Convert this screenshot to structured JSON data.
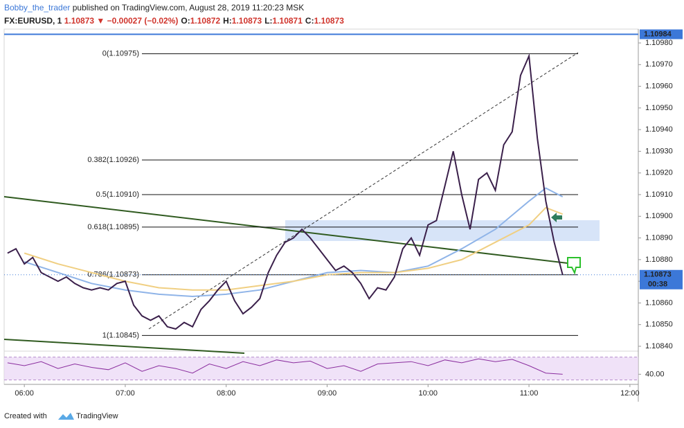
{
  "chart_data": {
    "type": "line",
    "header": {
      "author": "Bobby_the_trader",
      "published": "published on TradingView.com, August 28, 2019 11:20:23 MSK",
      "symbol": "FX:EURUSD, 1",
      "price": "1.10873",
      "change": "▼ −0.00027 (−0.02%)",
      "ohlc": [
        {
          "k": "O:",
          "v": "1.10872"
        },
        {
          "k": "H:",
          "v": "1.10873"
        },
        {
          "k": "L:",
          "v": "1.10871"
        },
        {
          "k": "C:",
          "v": "1.10873"
        }
      ]
    },
    "x": [
      350,
      355,
      360,
      365,
      370,
      375,
      380,
      385,
      390,
      395,
      400,
      405,
      410,
      415,
      420,
      425,
      430,
      435,
      440,
      445,
      450,
      455,
      460,
      465,
      470,
      475,
      480,
      485,
      490,
      495,
      500,
      505,
      510,
      515,
      520,
      525,
      530,
      535,
      540,
      545,
      550,
      555,
      560,
      565,
      570,
      575,
      580,
      585,
      590,
      595,
      600,
      605,
      610,
      615,
      620,
      625,
      630,
      635,
      640,
      645,
      650,
      655,
      660,
      665,
      670,
      675,
      680
    ],
    "values": [
      1.10883,
      1.10885,
      1.10878,
      1.10881,
      1.10874,
      1.10872,
      1.1087,
      1.10872,
      1.10869,
      1.10867,
      1.10866,
      1.10867,
      1.10866,
      1.10869,
      1.1087,
      1.10859,
      1.10854,
      1.10852,
      1.10854,
      1.10849,
      1.10848,
      1.10851,
      1.10849,
      1.10857,
      1.10861,
      1.10866,
      1.1087,
      1.10861,
      1.10855,
      1.10858,
      1.10862,
      1.10874,
      1.10882,
      1.10888,
      1.1089,
      1.10894,
      1.1089,
      1.10885,
      1.1088,
      1.10875,
      1.10877,
      1.10874,
      1.10869,
      1.10862,
      1.10867,
      1.10866,
      1.10872,
      1.10885,
      1.1089,
      1.10882,
      1.10896,
      1.10898,
      1.10914,
      1.1093,
      1.1091,
      1.10894,
      1.10917,
      1.1092,
      1.10912,
      1.10933,
      1.10939,
      1.10965,
      1.10974,
      1.10936,
      1.10907,
      1.10888,
      1.10873
    ],
    "color": "#3a1f4a",
    "ma_x": [
      360,
      380,
      400,
      420,
      440,
      460,
      480,
      500,
      520,
      540,
      560,
      580,
      600,
      620,
      640,
      660,
      670,
      680
    ],
    "ma_lines": [
      {
        "color": "#8fb4e8",
        "values": [
          1.10879,
          1.10874,
          1.10869,
          1.10866,
          1.10864,
          1.10863,
          1.10864,
          1.10866,
          1.1087,
          1.10874,
          1.10875,
          1.10874,
          1.10877,
          1.10885,
          1.10894,
          1.10907,
          1.10913,
          1.10909
        ]
      },
      {
        "color": "#f0cf82",
        "values": [
          1.10883,
          1.10878,
          1.10874,
          1.1087,
          1.10867,
          1.10866,
          1.10866,
          1.10868,
          1.1087,
          1.10873,
          1.10874,
          1.10874,
          1.10876,
          1.1088,
          1.10888,
          1.10896,
          1.10904,
          1.10901
        ]
      }
    ],
    "xlim": [
      348,
      725
    ],
    "xticks": [
      {
        "value": 360,
        "label": "06:00"
      },
      {
        "value": 420,
        "label": "07:00"
      },
      {
        "value": 480,
        "label": "08:00"
      },
      {
        "value": 540,
        "label": "09:00"
      },
      {
        "value": 600,
        "label": "10:00"
      },
      {
        "value": 660,
        "label": "11:00"
      },
      {
        "value": 720,
        "label": "12:00"
      }
    ],
    "ylim": [
      1.108384,
      1.109864
    ],
    "yticks": [
      {
        "value": 1.1084,
        "label": "1.10840"
      },
      {
        "value": 1.1085,
        "label": "1.10850"
      },
      {
        "value": 1.1086,
        "label": "1.10860"
      },
      {
        "value": 1.1087,
        "label": "1.10870"
      },
      {
        "value": 1.1088,
        "label": "1.10880"
      },
      {
        "value": 1.1089,
        "label": "1.10890"
      },
      {
        "value": 1.109,
        "label": "1.10900"
      },
      {
        "value": 1.1091,
        "label": "1.10910"
      },
      {
        "value": 1.1092,
        "label": "1.10920"
      },
      {
        "value": 1.1093,
        "label": "1.10930"
      },
      {
        "value": 1.1094,
        "label": "1.10940"
      },
      {
        "value": 1.1095,
        "label": "1.10950"
      },
      {
        "value": 1.1096,
        "label": "1.10960"
      },
      {
        "value": 1.1097,
        "label": "1.10970"
      },
      {
        "value": 1.1098,
        "label": "1.10980"
      }
    ],
    "grid": false,
    "fib_levels": [
      {
        "label": "0(1.10975)",
        "value": 1.10975
      },
      {
        "label": "0.382(1.10926)",
        "value": 1.10926
      },
      {
        "label": "0.5(1.10910)",
        "value": 1.1091
      },
      {
        "label": "0.618(1.10895)",
        "value": 1.10895
      },
      {
        "label": "0.786(1.10873)",
        "value": 1.10873
      },
      {
        "label": "1(1.10845)",
        "value": 1.10845
      }
    ],
    "top_line": {
      "value": 1.10984,
      "label": "1.10984"
    },
    "last_price": {
      "value": 1.10873,
      "label": "1.10873"
    },
    "countdown": "00:38",
    "rsi": {
      "x": [
        350,
        360,
        370,
        380,
        390,
        400,
        410,
        420,
        430,
        440,
        450,
        460,
        470,
        480,
        490,
        500,
        510,
        520,
        530,
        540,
        550,
        560,
        570,
        580,
        590,
        600,
        610,
        620,
        630,
        640,
        650,
        660,
        670,
        680
      ],
      "values": [
        60,
        55,
        62,
        50,
        58,
        52,
        48,
        60,
        45,
        55,
        50,
        42,
        58,
        50,
        62,
        55,
        65,
        60,
        63,
        50,
        55,
        45,
        58,
        60,
        62,
        55,
        65,
        60,
        67,
        62,
        66,
        55,
        42,
        40
      ],
      "ylim": [
        24.7,
        78
      ],
      "levels": [
        70,
        30
      ],
      "last": {
        "value": 40,
        "label": "40.00"
      }
    },
    "footer": {
      "prefix": "Created with",
      "brand": "TradingView"
    }
  }
}
